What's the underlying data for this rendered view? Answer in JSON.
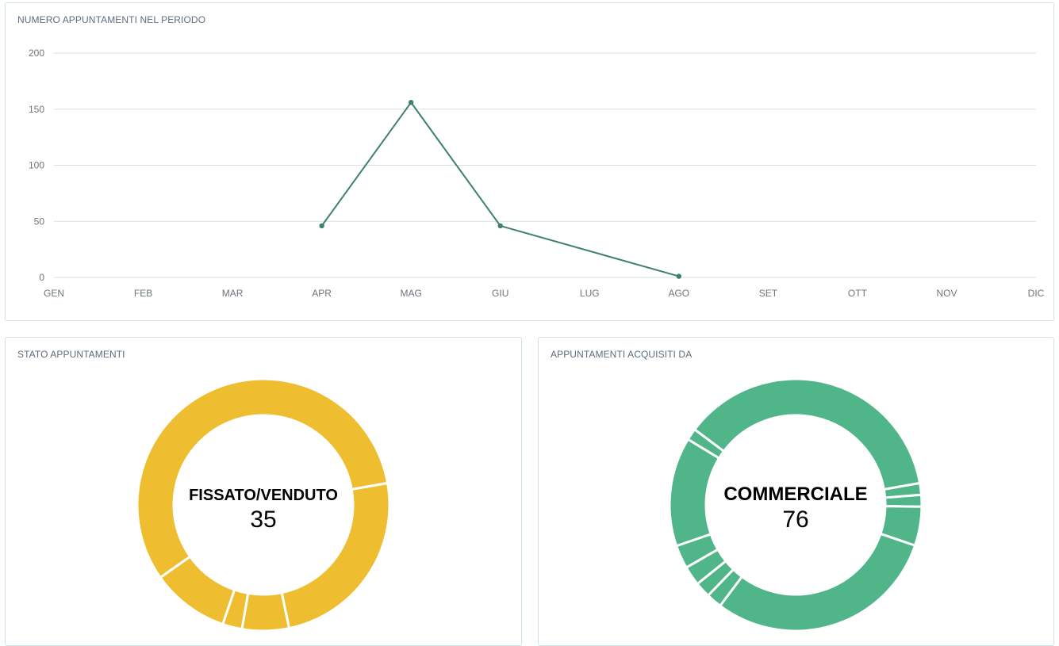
{
  "panels": {
    "line_title": "NUMERO APPUNTAMENTI NEL PERIODO",
    "donut1_title": "STATO APPUNTAMENTI",
    "donut2_title": "APPUNTAMENTI ACQUISITI DA"
  },
  "colors": {
    "line": "#3f8068",
    "grid": "#d5e1e4",
    "donut1": "#eebd30",
    "donut2": "#50b68a"
  },
  "chart_data": [
    {
      "type": "line",
      "title": "NUMERO APPUNTAMENTI NEL PERIODO",
      "categories": [
        "GEN",
        "FEB",
        "MAR",
        "APR",
        "MAG",
        "GIU",
        "LUG",
        "AGO",
        "SET",
        "OTT",
        "NOV",
        "DIC"
      ],
      "values": [
        null,
        null,
        null,
        46,
        156,
        46,
        null,
        1,
        null,
        null,
        null,
        null
      ],
      "yticks": [
        0,
        50,
        100,
        150,
        200
      ],
      "ylim": [
        0,
        200
      ],
      "grid": true
    },
    {
      "type": "pie",
      "title": "STATO APPUNTAMENTI",
      "center_label": "FISSATO/VENDUTO",
      "center_value": "35",
      "values": [
        24.5,
        6,
        2.5,
        10,
        57
      ]
    },
    {
      "type": "pie",
      "title": "APPUNTAMENTI ACQUISITI DA",
      "center_label": "COMMERCIALE",
      "center_value": "76",
      "values": [
        1.5,
        1.5,
        5,
        30,
        2,
        2,
        2.5,
        3,
        14,
        1.5,
        37
      ]
    }
  ]
}
